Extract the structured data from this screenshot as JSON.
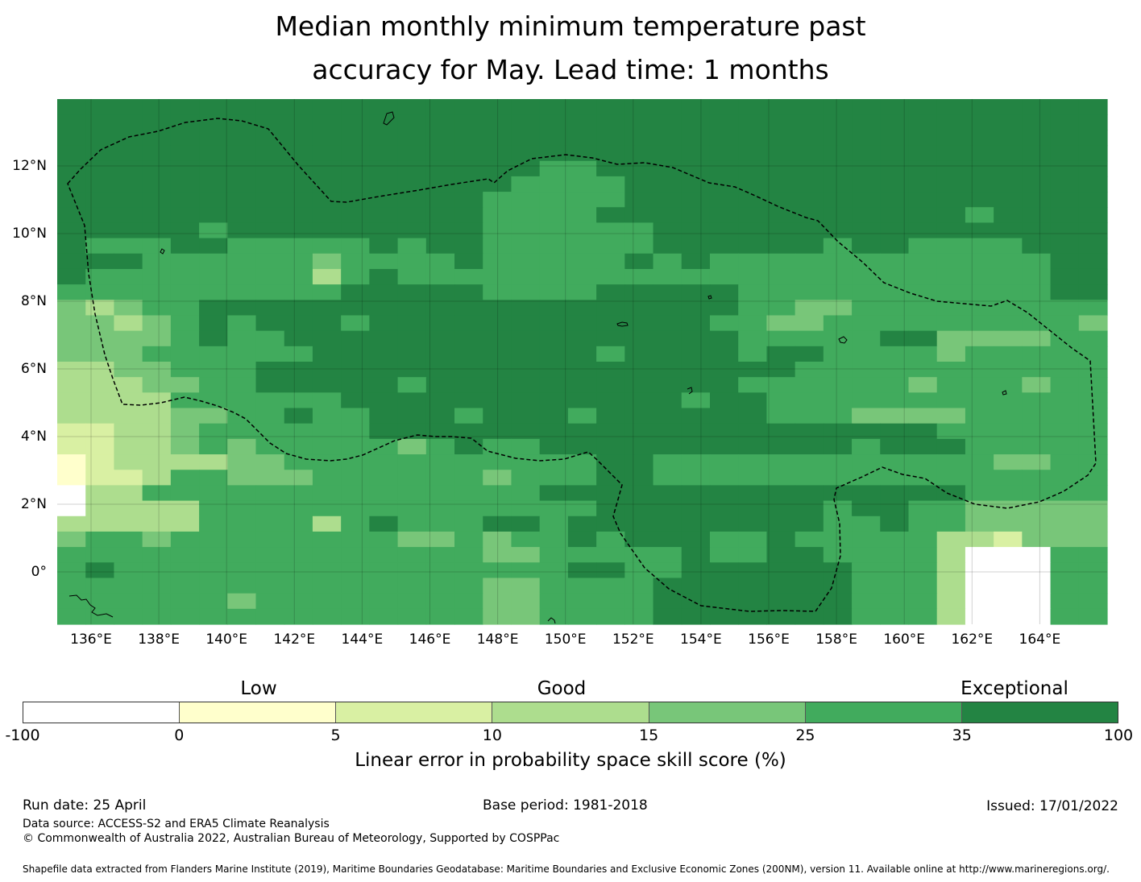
{
  "title_lines": [
    "Median monthly minimum temperature past",
    "accuracy for May. Lead time: 1 months"
  ],
  "map": {
    "lon_labels": [
      "136°E",
      "138°E",
      "140°E",
      "142°E",
      "144°E",
      "146°E",
      "148°E",
      "150°E",
      "152°E",
      "154°E",
      "156°E",
      "158°E",
      "160°E",
      "162°E",
      "164°E"
    ],
    "lat_labels": [
      "12°N",
      "10°N",
      "8°N",
      "6°N",
      "4°N",
      "2°N",
      "0°"
    ],
    "grid_rows": [
      "6666666666666666666666666666666666666",
      "6666666666666666666666666666666666666",
      "6666666666666666666666666666666666666",
      "6666666666666666666666666666666666666",
      "6666666666666666655666666666666666666",
      "6666666666666666555566666666666666666",
      "6666666666666665555566666666666666666",
      "6666666666666665555666666666666656666",
      "6666656666666665555556666666666666666",
      "6555665555565665555556666665665555666",
      "6665555554555565555565655555555555566",
      "6555555553565555555555555555555555566",
      "5555555555666665555666665555555555566",
      "4345566666666666666666665544555555555",
      "4434565666566666666666655445555555554",
      "4444565566666666666666665555566444455",
      "4445555556666666666566665665555455555",
      "3344555666666666666666666655555555555",
      "3334455666665666666666665555554555455",
      "3333555555666666666666566555555555555",
      "3333445565566656665666666555444455555",
      "2233455555566666666666666666666555555",
      "2233454555554565566666666666566655555",
      "1233334455555555555665555555555554455",
      "1223554445555554555665555555555555555",
      "0335555555555555566666666666666655555",
      "0333355555555555555666666665665544444",
      "3333355553565556656666666665565544444",
      "4554555555554454556566655655555332444",
      "5555555555555554455555655665555300055",
      "5655555555555555556655666666555300055",
      "5555555555555554455556666666555300055",
      "5555554555555554455556666666555300055",
      "5555555555555554455556666666555300055"
    ],
    "palette": [
      "#ffffff",
      "#ffffcc",
      "#d9f0a3",
      "#addd8e",
      "#78c679",
      "#41ab5d",
      "#238443"
    ]
  },
  "legend": {
    "category_labels": [
      "Low",
      "Good",
      "Exceptional"
    ],
    "ticks": [
      "-100",
      "0",
      "5",
      "10",
      "15",
      "25",
      "35",
      "100"
    ],
    "colors": [
      "#ffffff",
      "#ffffcc",
      "#d9f0a3",
      "#addd8e",
      "#78c679",
      "#41ab5d",
      "#238443"
    ],
    "title": "Linear error in probability space skill score (%)"
  },
  "footer": {
    "run_date": "Run date: 25 April",
    "base_period": "Base period: 1981-2018",
    "issued": "Issued: 17/01/2022",
    "data_source": "Data source: ACCESS-S2 and ERA5 Climate Reanalysis",
    "copyright": "© Commonwealth of Australia 2022, Australian Bureau of Meteorology, Supported by COSPPac",
    "shapefile": "Shapefile data extracted from Flanders Marine Institute (2019), Maritime Boundaries Geodatabase: Maritime Boundaries and Exclusive Economic Zones (200NM), version 11. Available online at http://www.marineregions.org/."
  }
}
